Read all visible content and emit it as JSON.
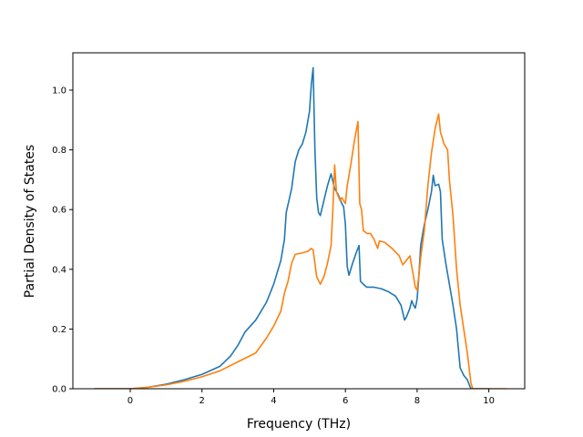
{
  "chart_data": {
    "type": "line",
    "title": "",
    "xlabel": "Frequency (THz)",
    "ylabel": "Partial Density of States",
    "xlim": [
      -1.6,
      11.0
    ],
    "ylim": [
      0.0,
      1.125
    ],
    "xticks": [
      0,
      2,
      4,
      6,
      8,
      10
    ],
    "yticks": [
      0.0,
      0.2,
      0.4,
      0.6,
      0.8,
      1.0
    ],
    "xtick_labels": [
      "0",
      "2",
      "4",
      "6",
      "8",
      "10"
    ],
    "ytick_labels": [
      "0.0",
      "0.2",
      "0.4",
      "0.6",
      "0.8",
      "1.0"
    ],
    "grid": false,
    "legend": "none",
    "series": [
      {
        "color": "#1f77b4",
        "points": [
          [
            -1.0,
            0.0
          ],
          [
            0.0,
            0.0
          ],
          [
            0.5,
            0.005
          ],
          [
            1.0,
            0.015
          ],
          [
            1.5,
            0.03
          ],
          [
            2.0,
            0.048
          ],
          [
            2.5,
            0.075
          ],
          [
            2.8,
            0.11
          ],
          [
            3.0,
            0.145
          ],
          [
            3.2,
            0.19
          ],
          [
            3.5,
            0.23
          ],
          [
            3.8,
            0.29
          ],
          [
            4.0,
            0.35
          ],
          [
            4.2,
            0.43
          ],
          [
            4.3,
            0.5
          ],
          [
            4.35,
            0.59
          ],
          [
            4.5,
            0.67
          ],
          [
            4.6,
            0.76
          ],
          [
            4.7,
            0.8
          ],
          [
            4.8,
            0.82
          ],
          [
            4.9,
            0.86
          ],
          [
            5.0,
            0.93
          ],
          [
            5.05,
            1.02
          ],
          [
            5.1,
            1.075
          ],
          [
            5.15,
            0.8
          ],
          [
            5.2,
            0.64
          ],
          [
            5.25,
            0.59
          ],
          [
            5.3,
            0.58
          ],
          [
            5.4,
            0.63
          ],
          [
            5.5,
            0.68
          ],
          [
            5.6,
            0.72
          ],
          [
            5.7,
            0.67
          ],
          [
            5.8,
            0.65
          ],
          [
            5.9,
            0.62
          ],
          [
            5.95,
            0.61
          ],
          [
            6.0,
            0.55
          ],
          [
            6.05,
            0.41
          ],
          [
            6.1,
            0.38
          ],
          [
            6.2,
            0.42
          ],
          [
            6.3,
            0.455
          ],
          [
            6.38,
            0.48
          ],
          [
            6.42,
            0.36
          ],
          [
            6.5,
            0.35
          ],
          [
            6.6,
            0.34
          ],
          [
            6.8,
            0.34
          ],
          [
            7.0,
            0.335
          ],
          [
            7.2,
            0.325
          ],
          [
            7.4,
            0.31
          ],
          [
            7.55,
            0.28
          ],
          [
            7.65,
            0.23
          ],
          [
            7.7,
            0.24
          ],
          [
            7.8,
            0.27
          ],
          [
            7.85,
            0.295
          ],
          [
            7.9,
            0.28
          ],
          [
            7.95,
            0.27
          ],
          [
            8.0,
            0.3
          ],
          [
            8.05,
            0.38
          ],
          [
            8.1,
            0.48
          ],
          [
            8.2,
            0.55
          ],
          [
            8.3,
            0.6
          ],
          [
            8.4,
            0.66
          ],
          [
            8.45,
            0.715
          ],
          [
            8.5,
            0.68
          ],
          [
            8.6,
            0.685
          ],
          [
            8.65,
            0.66
          ],
          [
            8.7,
            0.5
          ],
          [
            8.8,
            0.42
          ],
          [
            8.9,
            0.35
          ],
          [
            9.0,
            0.28
          ],
          [
            9.1,
            0.2
          ],
          [
            9.2,
            0.07
          ],
          [
            9.3,
            0.045
          ],
          [
            9.4,
            0.03
          ],
          [
            9.5,
            0.0
          ],
          [
            10.0,
            0.0
          ]
        ]
      },
      {
        "color": "#ff7f0e",
        "points": [
          [
            -1.0,
            0.0
          ],
          [
            0.0,
            0.0
          ],
          [
            0.5,
            0.005
          ],
          [
            1.0,
            0.013
          ],
          [
            1.5,
            0.025
          ],
          [
            2.0,
            0.04
          ],
          [
            2.5,
            0.06
          ],
          [
            3.0,
            0.09
          ],
          [
            3.5,
            0.12
          ],
          [
            3.8,
            0.17
          ],
          [
            4.0,
            0.21
          ],
          [
            4.2,
            0.26
          ],
          [
            4.3,
            0.32
          ],
          [
            4.4,
            0.36
          ],
          [
            4.5,
            0.42
          ],
          [
            4.6,
            0.45
          ],
          [
            4.8,
            0.455
          ],
          [
            4.95,
            0.46
          ],
          [
            5.0,
            0.465
          ],
          [
            5.05,
            0.47
          ],
          [
            5.1,
            0.465
          ],
          [
            5.2,
            0.375
          ],
          [
            5.3,
            0.35
          ],
          [
            5.4,
            0.375
          ],
          [
            5.5,
            0.42
          ],
          [
            5.6,
            0.48
          ],
          [
            5.65,
            0.6
          ],
          [
            5.7,
            0.75
          ],
          [
            5.75,
            0.66
          ],
          [
            5.85,
            0.63
          ],
          [
            5.9,
            0.64
          ],
          [
            6.0,
            0.62
          ],
          [
            6.05,
            0.68
          ],
          [
            6.15,
            0.75
          ],
          [
            6.25,
            0.83
          ],
          [
            6.35,
            0.895
          ],
          [
            6.4,
            0.62
          ],
          [
            6.45,
            0.6
          ],
          [
            6.5,
            0.53
          ],
          [
            6.6,
            0.52
          ],
          [
            6.7,
            0.52
          ],
          [
            6.8,
            0.5
          ],
          [
            6.9,
            0.47
          ],
          [
            6.95,
            0.495
          ],
          [
            7.1,
            0.49
          ],
          [
            7.3,
            0.47
          ],
          [
            7.5,
            0.445
          ],
          [
            7.6,
            0.415
          ],
          [
            7.7,
            0.43
          ],
          [
            7.8,
            0.445
          ],
          [
            7.85,
            0.41
          ],
          [
            7.95,
            0.34
          ],
          [
            8.0,
            0.33
          ],
          [
            8.05,
            0.38
          ],
          [
            8.1,
            0.44
          ],
          [
            8.2,
            0.53
          ],
          [
            8.3,
            0.68
          ],
          [
            8.4,
            0.79
          ],
          [
            8.5,
            0.87
          ],
          [
            8.6,
            0.92
          ],
          [
            8.65,
            0.86
          ],
          [
            8.75,
            0.82
          ],
          [
            8.85,
            0.8
          ],
          [
            8.9,
            0.7
          ],
          [
            9.0,
            0.58
          ],
          [
            9.1,
            0.4
          ],
          [
            9.2,
            0.28
          ],
          [
            9.3,
            0.2
          ],
          [
            9.4,
            0.12
          ],
          [
            9.45,
            0.07
          ],
          [
            9.5,
            0.02
          ],
          [
            9.55,
            0.0
          ],
          [
            10.5,
            0.0
          ]
        ]
      }
    ]
  }
}
